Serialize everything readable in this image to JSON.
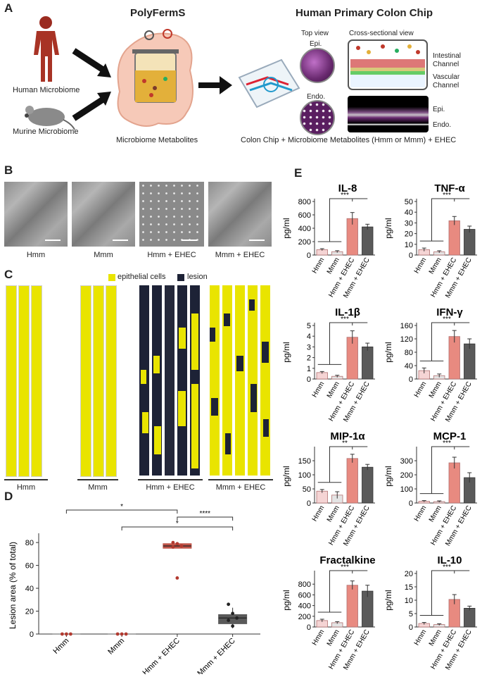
{
  "panelA": {
    "label": "A",
    "polyferms_title": "PolyFermS",
    "chip_title": "Human Primary Colon Chip",
    "human_microbiome": "Human Microbiome",
    "murine_microbiome": "Murine Microbiome",
    "metabolites": "Microbiome Metabolites",
    "top_view": "Top view",
    "cross_view": "Cross-sectional view",
    "epi_top": "Epi.",
    "endo_top": "Endo.",
    "intestinal_channel_1": "Intestinal",
    "intestinal_channel_2": "Channel",
    "vascular_channel_1": "Vascular",
    "vascular_channel_2": "Channel",
    "epi_cross": "Epi.",
    "endo_cross": "Endo.",
    "caption": "Colon Chip + Microbiome Metabolites (Hmm or Mmm) + EHEC"
  },
  "panelB": {
    "label": "B",
    "images": [
      "Hmm",
      "Mmm",
      "Hmm + EHEC",
      "Mmm + EHEC"
    ]
  },
  "panelC": {
    "label": "C",
    "legend_epithelial": "epithelial cells",
    "legend_lesion": "lesion",
    "groups": [
      "Hmm",
      "Mmm",
      "Hmm + EHEC",
      "Mmm + EHEC"
    ],
    "colors": {
      "epithelial": "#e9e400",
      "lesion": "#1d2236"
    }
  },
  "panelD": {
    "label": "D",
    "chart_data": {
      "type": "box",
      "ylabel": "Lesion area (% of total)",
      "ylim": [
        0,
        85
      ],
      "yticks": [
        0,
        20,
        40,
        60,
        80
      ],
      "categories": [
        "Hmm",
        "Mmm",
        "Hmm + EHEC",
        "Mmm + EHEC"
      ],
      "points": [
        [
          0,
          0,
          0
        ],
        [
          0,
          0,
          0
        ],
        [
          80,
          79,
          77,
          76,
          49
        ],
        [
          26,
          18,
          14,
          12,
          7
        ]
      ],
      "box": [
        {
          "q1": 0,
          "median": 0,
          "q3": 0
        },
        {
          "q1": 0,
          "median": 0,
          "q3": 0
        },
        {
          "q1": 75,
          "median": 77,
          "q3": 79
        },
        {
          "q1": 9,
          "median": 14,
          "q3": 17,
          "whisker_low": 5,
          "whisker_high": 23
        }
      ],
      "significance": [
        {
          "from": 0,
          "to": 2,
          "label": "*"
        },
        {
          "from": 2,
          "to": 3,
          "label": "****"
        },
        {
          "from": 1,
          "to": 3,
          "label": "*"
        }
      ],
      "colors": {
        "hmm_ehec": "#c0554a",
        "mmm_ehec": "#5a5a5a",
        "points": "#b23a30"
      }
    }
  },
  "panelE": {
    "label": "E",
    "chart_data": [
      {
        "type": "bar",
        "title": "IL-8",
        "ylabel": "pg/ml",
        "yticks": [
          0,
          200,
          400,
          600,
          800
        ],
        "ymax": 800,
        "categories": [
          "Hmm",
          "Mmm",
          "Hmm + EHEC",
          "Mmm + EHEC"
        ],
        "values": [
          80,
          50,
          545,
          420
        ],
        "errors": [
          15,
          15,
          90,
          40
        ],
        "sig": "***"
      },
      {
        "type": "bar",
        "title": "TNF-α",
        "ylabel": "pg/ml",
        "yticks": [
          0,
          10,
          20,
          30,
          40,
          50
        ],
        "ymax": 50,
        "categories": [
          "Hmm",
          "Mmm",
          "Hmm + EHEC",
          "Mmm + EHEC"
        ],
        "values": [
          5,
          3,
          32,
          24
        ],
        "errors": [
          1.5,
          1,
          4,
          3
        ],
        "sig": "***"
      },
      {
        "type": "bar",
        "title": "IL-1β",
        "ylabel": "pg/ml",
        "yticks": [
          0,
          1,
          2,
          3,
          4,
          5
        ],
        "ymax": 5,
        "categories": [
          "Hmm",
          "Mmm",
          "Hmm + EHEC",
          "Mmm + EHEC"
        ],
        "values": [
          0.6,
          0.25,
          3.9,
          3.0
        ],
        "errors": [
          0.1,
          0.1,
          0.6,
          0.35
        ],
        "sig": "***"
      },
      {
        "type": "bar",
        "title": "IFN-γ",
        "ylabel": "pg/ml",
        "yticks": [
          0,
          40,
          80,
          120,
          160
        ],
        "ymax": 160,
        "categories": [
          "Hmm",
          "Mmm",
          "Hmm + EHEC",
          "Mmm + EHEC"
        ],
        "values": [
          25,
          10,
          127,
          105
        ],
        "errors": [
          8,
          5,
          18,
          15
        ],
        "sig": "***"
      },
      {
        "type": "bar",
        "title": "MIP-1α",
        "ylabel": "pg/ml",
        "yticks": [
          0,
          50,
          100,
          150
        ],
        "ymax": 190,
        "categories": [
          "Hmm",
          "Mmm",
          "Hmm + EHEC",
          "Mmm + EHEC"
        ],
        "values": [
          42,
          28,
          158,
          127
        ],
        "errors": [
          6,
          12,
          15,
          10
        ],
        "sig": "**"
      },
      {
        "type": "bar",
        "title": "MCP-1",
        "ylabel": "pg/ml",
        "yticks": [
          0,
          100,
          200,
          300
        ],
        "ymax": 380,
        "categories": [
          "Hmm",
          "Mmm",
          "Hmm + EHEC",
          "Mmm + EHEC"
        ],
        "values": [
          12,
          10,
          285,
          180
        ],
        "errors": [
          5,
          5,
          40,
          35
        ],
        "sig": "***"
      },
      {
        "type": "bar",
        "title": "Fractalkine",
        "ylabel": "pg/ml",
        "yticks": [
          0,
          200,
          400,
          600,
          800
        ],
        "ymax": 1000,
        "categories": [
          "Hmm",
          "Mmm",
          "Hmm + EHEC",
          "Mmm + EHEC"
        ],
        "values": [
          120,
          80,
          780,
          670
        ],
        "errors": [
          25,
          20,
          80,
          110
        ],
        "sig": "***"
      },
      {
        "type": "bar",
        "title": "IL-10",
        "ylabel": "pg/ml",
        "yticks": [
          0,
          5,
          10,
          15,
          20
        ],
        "ymax": 20,
        "categories": [
          "Hmm",
          "Mmm",
          "Hmm + EHEC",
          "Mmm + EHEC"
        ],
        "values": [
          1.3,
          0.9,
          10.3,
          7.0
        ],
        "errors": [
          0.4,
          0.3,
          1.8,
          0.8
        ],
        "sig": "***"
      }
    ],
    "colors": {
      "hmm": "#f5d4d4",
      "mmm": "#e4e4e4",
      "hmm_ehec": "#e88a80",
      "mmm_ehec": "#5a5a5a",
      "edge": "#888888"
    }
  }
}
